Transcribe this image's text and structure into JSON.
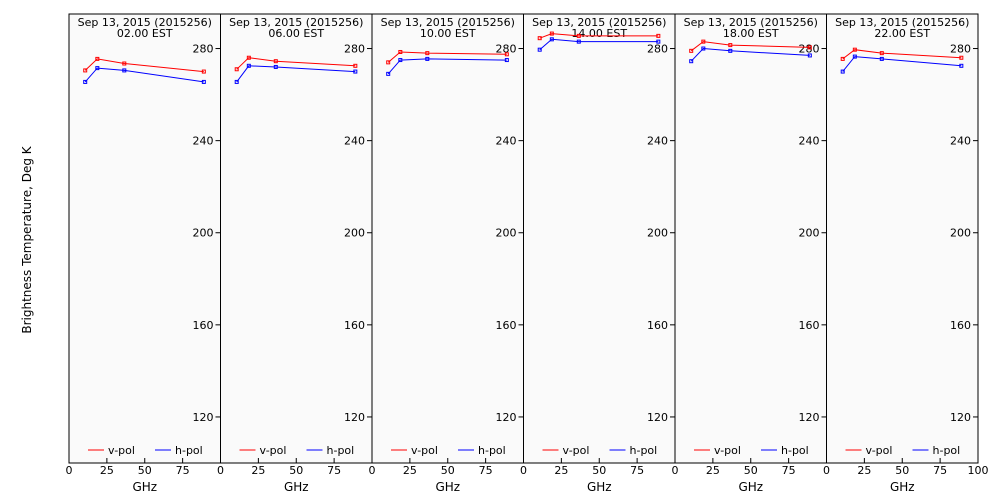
{
  "figure": {
    "ylabel": "Brightness Temperature, Deg K",
    "xlabel": "GHz"
  },
  "chart_data": {
    "type": "line",
    "xlabel": "GHz",
    "ylabel": "Brightness Temperature, Deg K",
    "xlim": [
      0,
      100
    ],
    "ylim": [
      100,
      295
    ],
    "x_ticks": [
      0,
      25,
      50,
      75,
      100
    ],
    "y_ticks": [
      120,
      160,
      200,
      240,
      280
    ],
    "grid": false,
    "legend_placement": "bottom",
    "legend": [
      {
        "name": "v-pol",
        "color": "#ff0000"
      },
      {
        "name": "h-pol",
        "color": "#0000ff"
      }
    ],
    "panels": [
      {
        "title_date": "Sep 13, 2015 (2015256)",
        "title_time": "02.00 EST",
        "x": [
          10.7,
          18.7,
          36.5,
          89.0
        ],
        "series": [
          {
            "name": "v-pol",
            "values": [
              270.5,
              275.5,
              273.5,
              270
            ]
          },
          {
            "name": "h-pol",
            "values": [
              265.5,
              271.5,
              270.5,
              265.5
            ]
          }
        ]
      },
      {
        "title_date": "Sep 13, 2015 (2015256)",
        "title_time": "06.00 EST",
        "x": [
          10.7,
          18.7,
          36.5,
          89.0
        ],
        "series": [
          {
            "name": "v-pol",
            "values": [
              271,
              276,
              274.5,
              272.5
            ]
          },
          {
            "name": "h-pol",
            "values": [
              265.5,
              272.5,
              272,
              270
            ]
          }
        ]
      },
      {
        "title_date": "Sep 13, 2015 (2015256)",
        "title_time": "10.00 EST",
        "x": [
          10.7,
          18.7,
          36.5,
          89.0
        ],
        "series": [
          {
            "name": "v-pol",
            "values": [
              274,
              278.5,
              278,
              277.5
            ]
          },
          {
            "name": "h-pol",
            "values": [
              269,
              275,
              275.5,
              275
            ]
          }
        ]
      },
      {
        "title_date": "Sep 13, 2015 (2015256)",
        "title_time": "14.00 EST",
        "x": [
          10.7,
          18.7,
          36.5,
          89.0
        ],
        "series": [
          {
            "name": "v-pol",
            "values": [
              284.5,
              286.5,
              285.5,
              285.5
            ]
          },
          {
            "name": "h-pol",
            "values": [
              279.5,
              284,
              283,
              283
            ]
          }
        ]
      },
      {
        "title_date": "Sep 13, 2015 (2015256)",
        "title_time": "18.00 EST",
        "x": [
          10.7,
          18.7,
          36.5,
          89.0
        ],
        "series": [
          {
            "name": "v-pol",
            "values": [
              279,
              283,
              281.5,
              280.5
            ]
          },
          {
            "name": "h-pol",
            "values": [
              274.5,
              280,
              279,
              277
            ]
          }
        ]
      },
      {
        "title_date": "Sep 13, 2015 (2015256)",
        "title_time": "22.00 EST",
        "x": [
          10.7,
          18.7,
          36.5,
          89.0
        ],
        "series": [
          {
            "name": "v-pol",
            "values": [
              275.5,
              279.5,
              278,
              276
            ]
          },
          {
            "name": "h-pol",
            "values": [
              270,
              276.5,
              275.5,
              272.5
            ]
          }
        ]
      }
    ]
  }
}
